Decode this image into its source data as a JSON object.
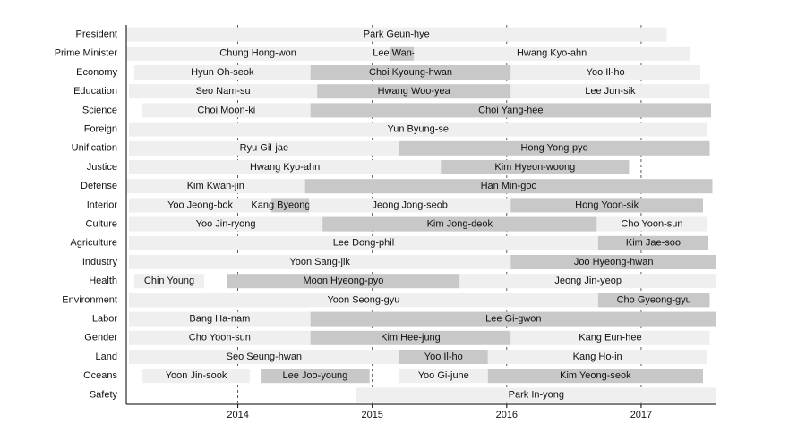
{
  "chart_data": {
    "type": "timeline",
    "xlim": [
      2013.17,
      2017.56
    ],
    "xticks": [
      2014,
      2015,
      2016,
      2017
    ],
    "grid": true,
    "rows": [
      {
        "label": "President",
        "terms": [
          {
            "name": "Park Geun-hye",
            "start": 2013.17,
            "end": 2017.19,
            "color": "#efefef"
          }
        ]
      },
      {
        "label": "Prime Minister",
        "terms": [
          {
            "name": "Chung Hong-won",
            "start": 2013.17,
            "end": 2015.13,
            "color": "#efefef"
          },
          {
            "name": "Lee Wan-koo",
            "start": 2015.13,
            "end": 2015.31,
            "color": "#c8c8c8"
          },
          {
            "name": "Hwang Kyo-ahn",
            "start": 2015.31,
            "end": 2017.36,
            "color": "#efefef"
          }
        ]
      },
      {
        "label": "Economy",
        "terms": [
          {
            "name": "Hyun Oh-seok",
            "start": 2013.23,
            "end": 2014.54,
            "color": "#efefef"
          },
          {
            "name": "Choi Kyoung-hwan",
            "start": 2014.54,
            "end": 2016.03,
            "color": "#c8c8c8"
          },
          {
            "name": "Yoo Il-ho",
            "start": 2016.03,
            "end": 2017.44,
            "color": "#efefef"
          }
        ]
      },
      {
        "label": "Education",
        "terms": [
          {
            "name": "Seo Nam-su",
            "start": 2013.19,
            "end": 2014.59,
            "color": "#efefef"
          },
          {
            "name": "Hwang Woo-yea",
            "start": 2014.59,
            "end": 2016.03,
            "color": "#c8c8c8"
          },
          {
            "name": "Lee Jun-sik",
            "start": 2016.03,
            "end": 2017.51,
            "color": "#efefef"
          }
        ]
      },
      {
        "label": "Science",
        "terms": [
          {
            "name": "Choi Moon-ki",
            "start": 2013.29,
            "end": 2014.54,
            "color": "#efefef"
          },
          {
            "name": "Choi Yang-hee",
            "start": 2014.54,
            "end": 2017.52,
            "color": "#c8c8c8"
          }
        ]
      },
      {
        "label": "Foreign",
        "terms": [
          {
            "name": "Yun Byung-se",
            "start": 2013.19,
            "end": 2017.49,
            "color": "#efefef"
          }
        ]
      },
      {
        "label": "Unification",
        "terms": [
          {
            "name": "Ryu Gil-jae",
            "start": 2013.19,
            "end": 2015.2,
            "color": "#efefef"
          },
          {
            "name": "Hong Yong-pyo",
            "start": 2015.2,
            "end": 2017.51,
            "color": "#c8c8c8"
          }
        ]
      },
      {
        "label": "Justice",
        "terms": [
          {
            "name": "Hwang Kyo-ahn",
            "start": 2013.19,
            "end": 2015.51,
            "color": "#efefef"
          },
          {
            "name": "Kim Hyeon-woong",
            "start": 2015.51,
            "end": 2016.91,
            "color": "#c8c8c8"
          }
        ]
      },
      {
        "label": "Defense",
        "terms": [
          {
            "name": "Kim Kwan-jin",
            "start": 2013.17,
            "end": 2014.5,
            "color": "#efefef"
          },
          {
            "name": "Han Min-goo",
            "start": 2014.5,
            "end": 2017.53,
            "color": "#c8c8c8"
          }
        ]
      },
      {
        "label": "Interior",
        "terms": [
          {
            "name": "Yoo Jeong-bok",
            "start": 2013.19,
            "end": 2014.25,
            "color": "#efefef"
          },
          {
            "name": "Kang Byeong-gyu",
            "start": 2014.25,
            "end": 2014.53,
            "color": "#c8c8c8"
          },
          {
            "name": "Jeong Jong-seob",
            "start": 2014.53,
            "end": 2016.03,
            "color": "#efefef"
          },
          {
            "name": "Hong Yoon-sik",
            "start": 2016.03,
            "end": 2017.46,
            "color": "#c8c8c8"
          }
        ]
      },
      {
        "label": "Culture",
        "terms": [
          {
            "name": "Yoo Jin-ryong",
            "start": 2013.19,
            "end": 2014.63,
            "color": "#efefef"
          },
          {
            "name": "Kim Jong-deok",
            "start": 2014.63,
            "end": 2016.67,
            "color": "#c8c8c8"
          },
          {
            "name": "Cho Yoon-sun",
            "start": 2016.67,
            "end": 2017.49,
            "color": "#efefef"
          }
        ]
      },
      {
        "label": "Agriculture",
        "terms": [
          {
            "name": "Lee Dong-phil",
            "start": 2013.19,
            "end": 2016.68,
            "color": "#efefef"
          },
          {
            "name": "Kim Jae-soo",
            "start": 2016.68,
            "end": 2017.5,
            "color": "#c8c8c8"
          }
        ]
      },
      {
        "label": "Industry",
        "terms": [
          {
            "name": "Yoon Sang-jik",
            "start": 2013.19,
            "end": 2016.03,
            "color": "#efefef"
          },
          {
            "name": "Joo Hyeong-hwan",
            "start": 2016.03,
            "end": 2017.56,
            "color": "#c8c8c8"
          }
        ]
      },
      {
        "label": "Health",
        "terms": [
          {
            "name": "Chin Young",
            "start": 2013.23,
            "end": 2013.75,
            "color": "#efefef"
          },
          {
            "name": "Moon Hyeong-pyo",
            "start": 2013.92,
            "end": 2015.65,
            "color": "#c8c8c8"
          },
          {
            "name": "Jeong Jin-yeop",
            "start": 2015.65,
            "end": 2017.56,
            "color": "#efefef"
          }
        ]
      },
      {
        "label": "Environment",
        "terms": [
          {
            "name": "Yoon Seong-gyu",
            "start": 2013.19,
            "end": 2016.68,
            "color": "#efefef"
          },
          {
            "name": "Cho Gyeong-gyu",
            "start": 2016.68,
            "end": 2017.51,
            "color": "#c8c8c8"
          }
        ]
      },
      {
        "label": "Labor",
        "terms": [
          {
            "name": "Bang Ha-nam",
            "start": 2013.19,
            "end": 2014.54,
            "color": "#efefef"
          },
          {
            "name": "Lee Gi-gwon",
            "start": 2014.54,
            "end": 2017.56,
            "color": "#c8c8c8"
          }
        ]
      },
      {
        "label": "Gender",
        "terms": [
          {
            "name": "Cho Yoon-sun",
            "start": 2013.19,
            "end": 2014.54,
            "color": "#efefef"
          },
          {
            "name": "Kim Hee-jung",
            "start": 2014.54,
            "end": 2016.03,
            "color": "#c8c8c8"
          },
          {
            "name": "Kang Eun-hee",
            "start": 2016.03,
            "end": 2017.51,
            "color": "#efefef"
          }
        ]
      },
      {
        "label": "Land",
        "terms": [
          {
            "name": "Seo Seung-hwan",
            "start": 2013.19,
            "end": 2015.2,
            "color": "#efefef"
          },
          {
            "name": "Yoo Il-ho",
            "start": 2015.2,
            "end": 2015.86,
            "color": "#c8c8c8"
          },
          {
            "name": "Kang Ho-in",
            "start": 2015.86,
            "end": 2017.49,
            "color": "#efefef"
          }
        ]
      },
      {
        "label": "Oceans",
        "terms": [
          {
            "name": "Yoon Jin-sook",
            "start": 2013.29,
            "end": 2014.09,
            "color": "#efefef"
          },
          {
            "name": "Lee Joo-young",
            "start": 2014.17,
            "end": 2014.98,
            "color": "#c8c8c8"
          },
          {
            "name": "Yoo Gi-june",
            "start": 2015.2,
            "end": 2015.86,
            "color": "#efefef"
          },
          {
            "name": "Kim Yeong-seok",
            "start": 2015.86,
            "end": 2017.46,
            "color": "#c8c8c8"
          }
        ]
      },
      {
        "label": "Safety",
        "terms": [
          {
            "name": "Park In-yong",
            "start": 2014.88,
            "end": 2017.56,
            "color": "#efefef"
          }
        ]
      }
    ]
  }
}
